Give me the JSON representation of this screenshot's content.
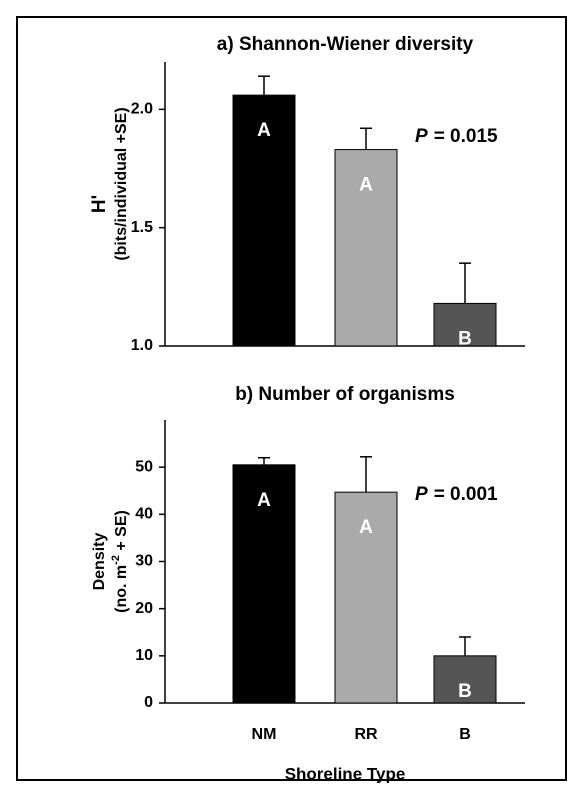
{
  "chart_data": [
    {
      "type": "bar",
      "title": "a) Shannon-Wiener diversity",
      "y_label": [
        "H'",
        "(bits/individual +SE)"
      ],
      "values": [
        2.06,
        1.83,
        1.18
      ],
      "errors": [
        0.08,
        0.09,
        0.17
      ],
      "colors": [
        "#000000",
        "#aaaaaa",
        "#555555"
      ],
      "bar_labels": [
        "A",
        "A",
        "B"
      ],
      "p_symbol": "P",
      "p_text": "= 0.015",
      "ylim": [
        1.0,
        2.2
      ],
      "yticks": [
        {
          "value": 1.0,
          "label": "1.0"
        },
        {
          "value": 1.5,
          "label": "1.5"
        },
        {
          "value": 2.0,
          "label": "2.0"
        }
      ]
    },
    {
      "type": "bar",
      "title": "b) Number of organisms",
      "y_label": [
        "Density",
        "(no. m",
        "-2",
        " + SE)"
      ],
      "categories": [
        "NM",
        "RR",
        "B"
      ],
      "x_label": "Shoreline Type",
      "values": [
        50.5,
        44.7,
        10
      ],
      "errors": [
        1.5,
        7.5,
        4
      ],
      "colors": [
        "#000000",
        "#aaaaaa",
        "#555555"
      ],
      "bar_labels": [
        "A",
        "A",
        "B"
      ],
      "p_symbol": "P",
      "p_text": "= 0.001",
      "ylim": [
        0,
        60
      ],
      "yticks": [
        0,
        10,
        20,
        30,
        40,
        50
      ]
    }
  ]
}
